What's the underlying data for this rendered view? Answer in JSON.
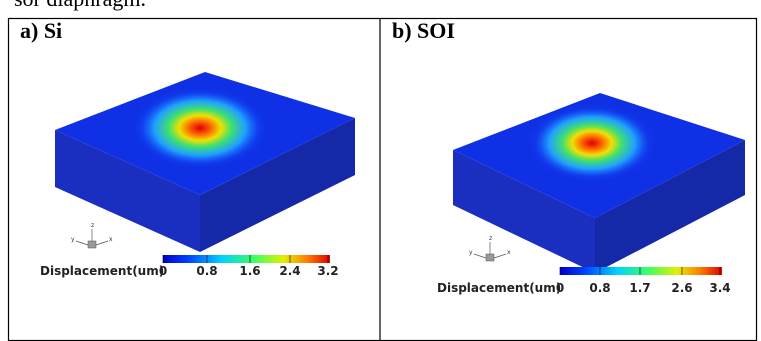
{
  "header": {
    "caption_fragment": "sor diaphragm."
  },
  "panels": [
    {
      "label": "a) Si",
      "axes": [
        "z",
        "x",
        "y"
      ],
      "colorbar": {
        "title": "Displacement(um)",
        "ticks": [
          "0",
          "0.8",
          "1.6",
          "2.4",
          "3.2"
        ]
      }
    },
    {
      "label": "b) SOI",
      "axes": [
        "z",
        "x",
        "y"
      ],
      "colorbar": {
        "title": "Displacement(um)",
        "ticks": [
          "0",
          "0.8",
          "1.7",
          "2.6",
          "3.4"
        ]
      }
    }
  ]
}
